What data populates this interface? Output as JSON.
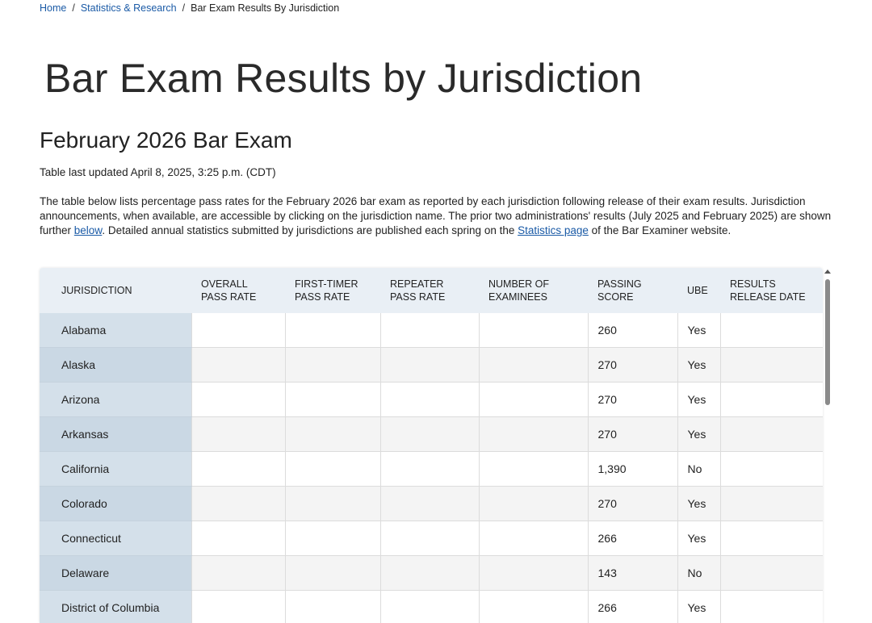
{
  "breadcrumb": {
    "home": "Home",
    "section": "Statistics & Research",
    "current": "Bar Exam Results By Jurisdiction",
    "separator": "/"
  },
  "page_title": "Bar Exam Results by Jurisdiction",
  "section_title": "February 2026 Bar Exam",
  "updated_text": "Table last updated April 8, 2025, 3:25 p.m. (CDT)",
  "description": {
    "part1": "The table below lists percentage pass rates for the February 2026 bar exam as reported by each jurisdiction following release of their exam results. Jurisdiction announcements, when available, are accessible by clicking on the jurisdiction name. The prior two administrations' results (July 2025 and February 2025) are shown further ",
    "link1": "below",
    "part2": ". Detailed annual statistics submitted by jurisdictions are published each spring on the ",
    "link2": "Statistics page",
    "part3": " of the Bar Examiner website."
  },
  "table": {
    "headers": [
      "JURISDICTION",
      "OVERALL PASS RATE",
      "FIRST-TIMER PASS RATE",
      "REPEATER PASS RATE",
      "NUMBER OF EXAMINEES",
      "PASSING SCORE",
      "UBE",
      "RESULTS RELEASE DATE"
    ],
    "rows": [
      {
        "jurisdiction": "Alabama",
        "overall": "",
        "first_timer": "",
        "repeater": "",
        "examinees": "",
        "passing_score": "260",
        "ube": "Yes",
        "release_date": ""
      },
      {
        "jurisdiction": "Alaska",
        "overall": "",
        "first_timer": "",
        "repeater": "",
        "examinees": "",
        "passing_score": "270",
        "ube": "Yes",
        "release_date": ""
      },
      {
        "jurisdiction": "Arizona",
        "overall": "",
        "first_timer": "",
        "repeater": "",
        "examinees": "",
        "passing_score": "270",
        "ube": "Yes",
        "release_date": ""
      },
      {
        "jurisdiction": "Arkansas",
        "overall": "",
        "first_timer": "",
        "repeater": "",
        "examinees": "",
        "passing_score": "270",
        "ube": "Yes",
        "release_date": ""
      },
      {
        "jurisdiction": "California",
        "overall": "",
        "first_timer": "",
        "repeater": "",
        "examinees": "",
        "passing_score": "1,390",
        "ube": "No",
        "release_date": ""
      },
      {
        "jurisdiction": "Colorado",
        "overall": "",
        "first_timer": "",
        "repeater": "",
        "examinees": "",
        "passing_score": "270",
        "ube": "Yes",
        "release_date": ""
      },
      {
        "jurisdiction": "Connecticut",
        "overall": "",
        "first_timer": "",
        "repeater": "",
        "examinees": "",
        "passing_score": "266",
        "ube": "Yes",
        "release_date": ""
      },
      {
        "jurisdiction": "Delaware",
        "overall": "",
        "first_timer": "",
        "repeater": "",
        "examinees": "",
        "passing_score": "143",
        "ube": "No",
        "release_date": ""
      },
      {
        "jurisdiction": "District of Columbia",
        "overall": "",
        "first_timer": "",
        "repeater": "",
        "examinees": "",
        "passing_score": "266",
        "ube": "Yes",
        "release_date": ""
      }
    ]
  },
  "colors": {
    "link": "#1a5aa6",
    "header_bg": "#e9eff5",
    "jurisdiction_col_bg": "#d4e0ea",
    "stripe_bg": "#f4f4f4"
  }
}
